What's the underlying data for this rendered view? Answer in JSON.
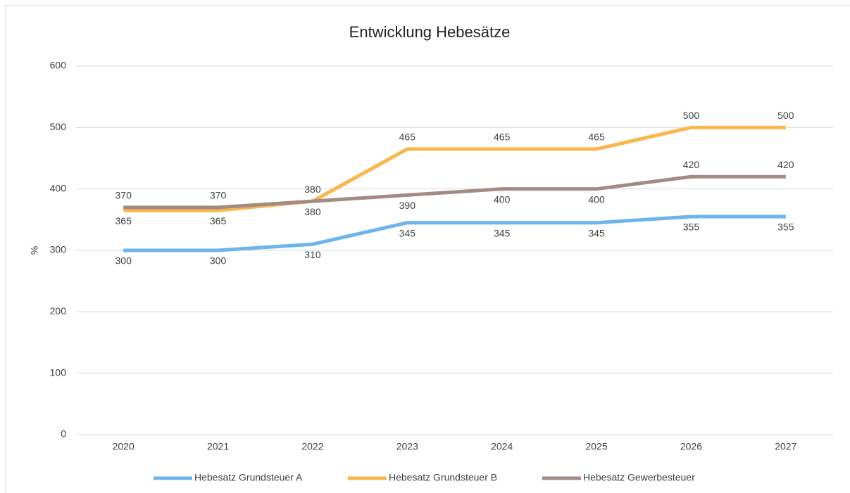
{
  "chart_data": {
    "type": "line",
    "title": "Entwicklung Hebesätze",
    "ylabel": "%",
    "categories": [
      "2020",
      "2021",
      "2022",
      "2023",
      "2024",
      "2025",
      "2026",
      "2027"
    ],
    "series": [
      {
        "name": "Hebesatz Grundsteuer A",
        "color": "#6cb4ee",
        "values": [
          300,
          300,
          310,
          345,
          345,
          345,
          355,
          355
        ]
      },
      {
        "name": "Hebesatz Grundsteuer B",
        "color": "#fbb64b",
        "values": [
          365,
          365,
          380,
          465,
          465,
          465,
          500,
          500
        ]
      },
      {
        "name": "Hebesatz Gewerbesteuer",
        "color": "#a18b82",
        "values": [
          370,
          370,
          380,
          390,
          400,
          400,
          420,
          420
        ]
      }
    ],
    "ylim": [
      0,
      600
    ],
    "yticks": [
      0,
      100,
      200,
      300,
      400,
      500,
      600
    ],
    "grid": true,
    "legend": "bottom"
  }
}
